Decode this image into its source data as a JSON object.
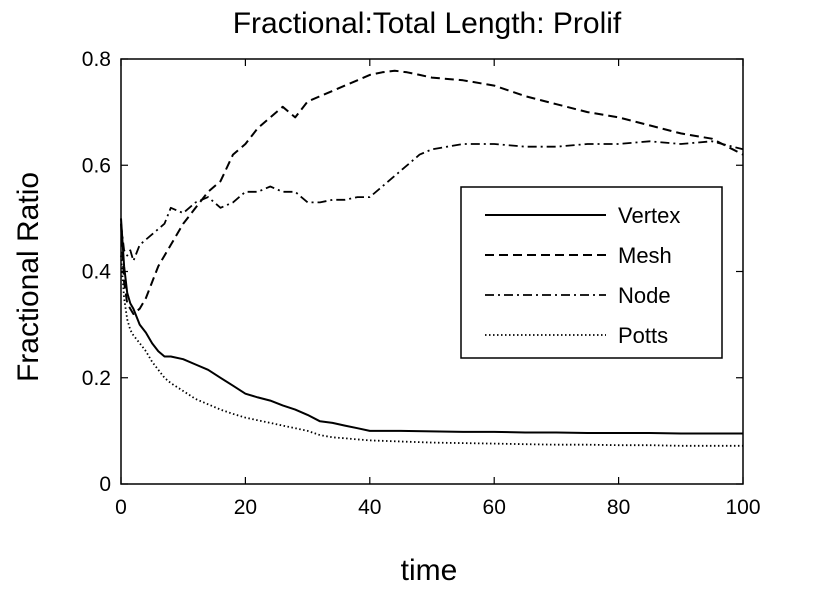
{
  "chart_data": {
    "type": "line",
    "title": "Fractional:Total Length: Prolif",
    "xlabel": "time",
    "ylabel": "Fractional Ratio",
    "xlim": [
      0,
      100
    ],
    "ylim": [
      0,
      0.8
    ],
    "xticks": [
      0,
      20,
      40,
      60,
      80,
      100
    ],
    "yticks": [
      0,
      0.2,
      0.4,
      0.6,
      0.8
    ],
    "xtick_labels": [
      "0",
      "20",
      "40",
      "60",
      "80",
      "100"
    ],
    "ytick_labels": [
      "0",
      "0.2",
      "0.4",
      "0.6",
      "0.8"
    ],
    "grid": false,
    "legend_position": "right",
    "series": [
      {
        "name": "Vertex",
        "dash": "solid",
        "x": [
          0,
          0.5,
          1,
          1.5,
          2,
          3,
          4,
          5,
          6,
          7,
          8,
          10,
          12,
          14,
          16,
          18,
          20,
          22,
          24,
          26,
          28,
          30,
          32,
          34,
          36,
          38,
          40,
          45,
          50,
          55,
          60,
          65,
          70,
          75,
          80,
          85,
          90,
          95,
          100
        ],
        "y": [
          0.5,
          0.41,
          0.36,
          0.34,
          0.33,
          0.3,
          0.285,
          0.265,
          0.25,
          0.24,
          0.24,
          0.235,
          0.225,
          0.215,
          0.2,
          0.185,
          0.17,
          0.163,
          0.157,
          0.148,
          0.14,
          0.13,
          0.118,
          0.115,
          0.11,
          0.105,
          0.1,
          0.1,
          0.099,
          0.098,
          0.098,
          0.097,
          0.097,
          0.096,
          0.096,
          0.096,
          0.095,
          0.095,
          0.095
        ]
      },
      {
        "name": "Mesh",
        "dash": "dashed",
        "x": [
          0,
          0.5,
          1,
          1.5,
          2,
          3,
          4,
          5,
          6,
          7,
          8,
          10,
          12,
          14,
          16,
          18,
          20,
          22,
          24,
          26,
          28,
          30,
          32,
          34,
          36,
          38,
          40,
          42,
          44,
          46,
          48,
          50,
          55,
          60,
          65,
          70,
          75,
          80,
          85,
          90,
          95,
          100
        ],
        "y": [
          0.49,
          0.38,
          0.34,
          0.33,
          0.32,
          0.33,
          0.35,
          0.38,
          0.41,
          0.43,
          0.45,
          0.49,
          0.52,
          0.55,
          0.57,
          0.62,
          0.64,
          0.67,
          0.69,
          0.71,
          0.69,
          0.72,
          0.73,
          0.74,
          0.75,
          0.76,
          0.77,
          0.775,
          0.778,
          0.775,
          0.77,
          0.765,
          0.76,
          0.75,
          0.73,
          0.715,
          0.7,
          0.69,
          0.675,
          0.66,
          0.65,
          0.62
        ]
      },
      {
        "name": "Node",
        "dash": "dashdot",
        "x": [
          0,
          0.5,
          1,
          1.5,
          2,
          3,
          4,
          5,
          6,
          7,
          8,
          10,
          12,
          14,
          16,
          18,
          20,
          22,
          24,
          26,
          28,
          30,
          32,
          34,
          36,
          38,
          40,
          42,
          44,
          46,
          48,
          50,
          55,
          60,
          65,
          70,
          75,
          80,
          85,
          90,
          95,
          100
        ],
        "y": [
          0.49,
          0.44,
          0.43,
          0.44,
          0.42,
          0.45,
          0.46,
          0.47,
          0.48,
          0.49,
          0.52,
          0.51,
          0.53,
          0.54,
          0.52,
          0.53,
          0.55,
          0.55,
          0.56,
          0.55,
          0.55,
          0.53,
          0.53,
          0.535,
          0.535,
          0.54,
          0.54,
          0.56,
          0.58,
          0.6,
          0.62,
          0.63,
          0.64,
          0.64,
          0.635,
          0.635,
          0.64,
          0.64,
          0.645,
          0.64,
          0.645,
          0.63
        ]
      },
      {
        "name": "Potts",
        "dash": "dotted",
        "x": [
          0,
          0.5,
          1,
          1.5,
          2,
          3,
          4,
          5,
          6,
          7,
          8,
          10,
          12,
          14,
          16,
          18,
          20,
          22,
          24,
          26,
          28,
          30,
          32,
          34,
          36,
          38,
          40,
          45,
          50,
          55,
          60,
          65,
          70,
          75,
          80,
          85,
          90,
          95,
          100
        ],
        "y": [
          0.43,
          0.35,
          0.31,
          0.29,
          0.28,
          0.265,
          0.25,
          0.23,
          0.215,
          0.2,
          0.19,
          0.175,
          0.16,
          0.15,
          0.14,
          0.132,
          0.125,
          0.12,
          0.115,
          0.11,
          0.105,
          0.1,
          0.092,
          0.088,
          0.086,
          0.084,
          0.082,
          0.08,
          0.078,
          0.077,
          0.076,
          0.075,
          0.074,
          0.074,
          0.073,
          0.073,
          0.072,
          0.072,
          0.072
        ]
      }
    ]
  }
}
